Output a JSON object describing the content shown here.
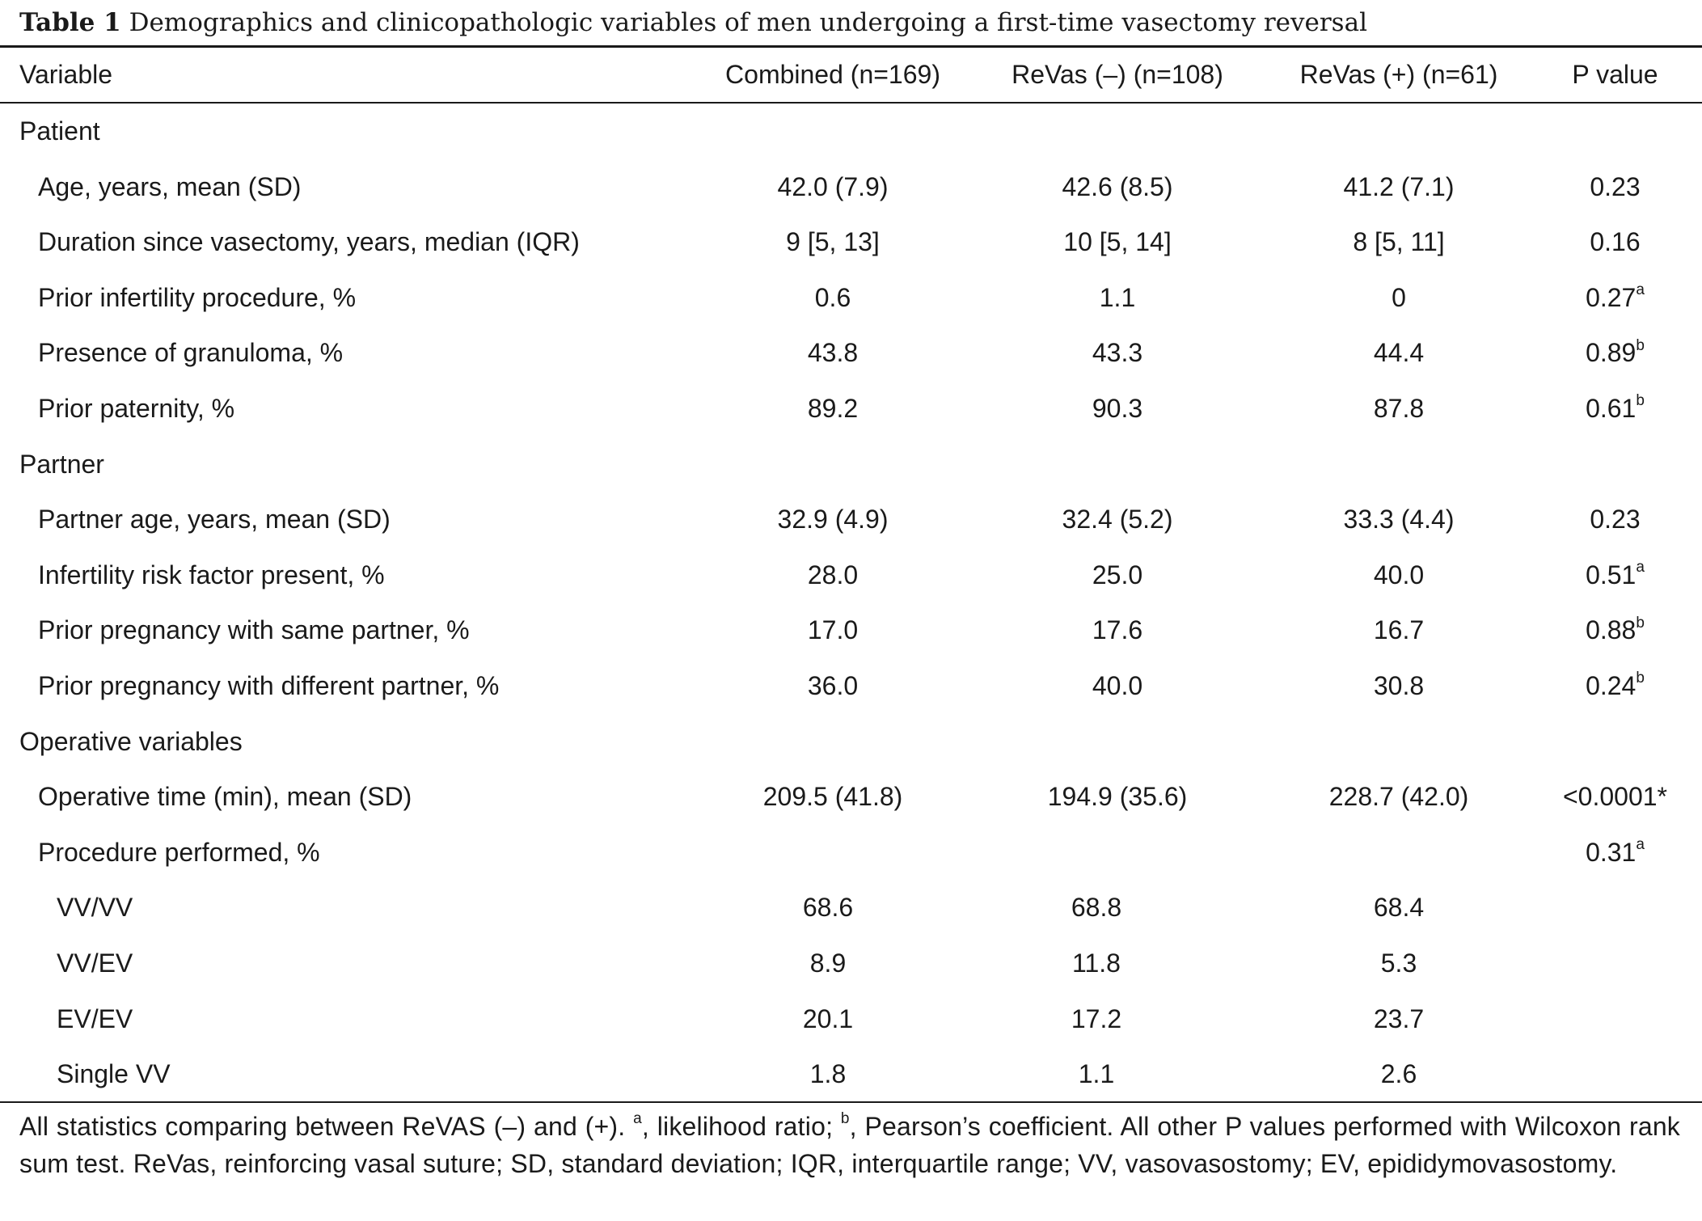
{
  "caption": {
    "label": "Table 1",
    "text": "Demographics and clinicopathologic variables of men undergoing a first-time vasectomy reversal"
  },
  "columns": [
    "Variable",
    "Combined (n=169)",
    "ReVas (–) (n=108)",
    "ReVas (+) (n=61)",
    "P value"
  ],
  "rows": [
    {
      "label": "Patient",
      "level": 0,
      "values": [
        "",
        "",
        "",
        ""
      ],
      "sup": ""
    },
    {
      "label": "Age, years, mean (SD)",
      "level": 1,
      "values": [
        "42.0 (7.9)",
        "42.6 (8.5)",
        "41.2 (7.1)",
        "0.23"
      ],
      "sup": ""
    },
    {
      "label": "Duration since vasectomy, years, median (IQR)",
      "level": 1,
      "values": [
        "9 [5, 13]",
        "10 [5, 14]",
        "8 [5, 11]",
        "0.16"
      ],
      "sup": ""
    },
    {
      "label": "Prior infertility procedure, %",
      "level": 1,
      "values": [
        "0.6",
        "1.1",
        "0",
        "0.27"
      ],
      "sup": "a"
    },
    {
      "label": "Presence of granuloma, %",
      "level": 1,
      "values": [
        "43.8",
        "43.3",
        "44.4",
        "0.89"
      ],
      "sup": "b"
    },
    {
      "label": "Prior paternity, %",
      "level": 1,
      "values": [
        "89.2",
        "90.3",
        "87.8",
        "0.61"
      ],
      "sup": "b"
    },
    {
      "label": "Partner",
      "level": 0,
      "values": [
        "",
        "",
        "",
        ""
      ],
      "sup": ""
    },
    {
      "label": "Partner age, years, mean (SD)",
      "level": 1,
      "values": [
        "32.9 (4.9)",
        "32.4 (5.2)",
        "33.3 (4.4)",
        "0.23"
      ],
      "sup": ""
    },
    {
      "label": "Infertility risk factor present, %",
      "level": 1,
      "values": [
        "28.0",
        "25.0",
        "40.0",
        "0.51"
      ],
      "sup": "a"
    },
    {
      "label": "Prior pregnancy with same partner, %",
      "level": 1,
      "values": [
        "17.0",
        "17.6",
        "16.7",
        "0.88"
      ],
      "sup": "b"
    },
    {
      "label": "Prior pregnancy with different partner, %",
      "level": 1,
      "values": [
        "36.0",
        "40.0",
        "30.8",
        "0.24"
      ],
      "sup": "b"
    },
    {
      "label": "Operative variables",
      "level": 0,
      "values": [
        "",
        "",
        "",
        ""
      ],
      "sup": ""
    },
    {
      "label": "Operative time (min), mean (SD)",
      "level": 1,
      "values": [
        "209.5 (41.8)",
        "194.9 (35.6)",
        "228.7 (42.0)",
        "<0.0001*"
      ],
      "sup": ""
    },
    {
      "label": "Procedure performed, %",
      "level": 1,
      "values": [
        "",
        "",
        "",
        "0.31"
      ],
      "sup": "a"
    },
    {
      "label": "VV/VV",
      "level": 2,
      "values": [
        "68.6",
        "68.8",
        "68.4",
        ""
      ],
      "sup": ""
    },
    {
      "label": "VV/EV",
      "level": 2,
      "values": [
        "8.9",
        "11.8",
        "5.3",
        ""
      ],
      "sup": ""
    },
    {
      "label": "EV/EV",
      "level": 2,
      "values": [
        "20.1",
        "17.2",
        "23.7",
        ""
      ],
      "sup": ""
    },
    {
      "label": "Single VV",
      "level": 2,
      "values": [
        "1.8",
        "1.1",
        "2.6",
        ""
      ],
      "sup": ""
    }
  ],
  "footnote": {
    "part1": "All statistics comparing between ReVAS (–) and (+). ",
    "sup_a": "a",
    "part2": ", likelihood ratio; ",
    "sup_b": "b",
    "part3": ", Pearson’s coefficient. All other P values performed with Wilcoxon rank sum test. ReVas, reinforcing vasal suture; SD, standard deviation; IQR, interquartile range; VV, vasovasostomy; EV, epididymovasostomy."
  }
}
